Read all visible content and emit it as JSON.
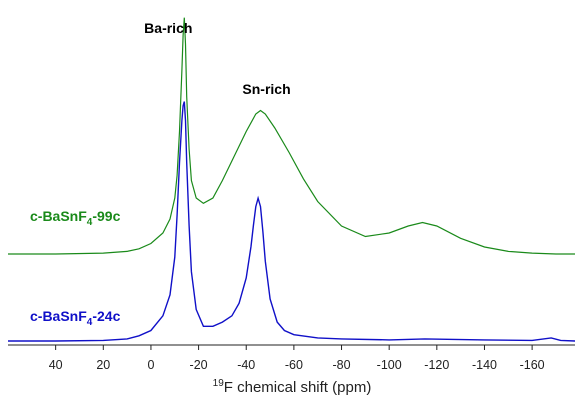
{
  "chart_data": {
    "type": "line",
    "xlabel_sup": "19",
    "xlabel": "F chemical shift (ppm)",
    "xlim": [
      60,
      -178
    ],
    "x_reversed": true,
    "x_ticks": [
      40,
      20,
      0,
      -20,
      -40,
      -60,
      -80,
      -100,
      -120,
      -140,
      -160
    ],
    "x_tick_labels": [
      "40",
      "20",
      "0",
      "-20",
      "-40",
      "-60",
      "-80",
      "-100",
      "-120",
      "-140",
      "-160"
    ],
    "ylabel": "",
    "y_axis_shown": false,
    "ylim": [
      -0.12,
      1.45
    ],
    "grid": false,
    "annotations": [
      {
        "text": "Ba-rich",
        "x": -14,
        "y": 1.43
      },
      {
        "text": "Sn-rich",
        "x": -46,
        "y": 1.02
      }
    ],
    "series": [
      {
        "label_main": "c-BaSnF",
        "label_sub": "4",
        "label_suffix": "-99c",
        "color": "#1a8a1a",
        "x": [
          60,
          40,
          20,
          10,
          5,
          0,
          -5,
          -8,
          -10,
          -11,
          -12,
          -13,
          -13.5,
          -14,
          -14.5,
          -15,
          -16,
          -17,
          -19,
          -22,
          -26,
          -30,
          -35,
          -40,
          -44,
          -46,
          -48,
          -52,
          -58,
          -64,
          -70,
          -80,
          -90,
          -100,
          -108,
          -114,
          -120,
          -130,
          -140,
          -150,
          -160,
          -170,
          -178
        ],
        "y": [
          0,
          0,
          0.005,
          0.015,
          0.03,
          0.06,
          0.12,
          0.2,
          0.32,
          0.45,
          0.7,
          1.05,
          1.25,
          1.35,
          1.2,
          0.9,
          0.6,
          0.42,
          0.32,
          0.29,
          0.32,
          0.42,
          0.56,
          0.7,
          0.8,
          0.82,
          0.8,
          0.72,
          0.58,
          0.43,
          0.3,
          0.16,
          0.1,
          0.12,
          0.16,
          0.18,
          0.16,
          0.09,
          0.04,
          0.015,
          0.005,
          0,
          0
        ]
      },
      {
        "label_main": "c-BaSnF",
        "label_sub": "4",
        "label_suffix": "-24c",
        "color": "#1010c8",
        "x": [
          60,
          40,
          20,
          10,
          5,
          0,
          -5,
          -8,
          -10,
          -11,
          -12,
          -13,
          -13.5,
          -14,
          -14.5,
          -15,
          -16,
          -17,
          -19,
          -22,
          -26,
          -30,
          -34,
          -37,
          -40,
          -42,
          -43,
          -44,
          -45,
          -46,
          -47,
          -48,
          -50,
          -53,
          -56,
          -60,
          -70,
          -80,
          -100,
          -115,
          -140,
          -160,
          -168,
          -172,
          -178
        ],
        "y": [
          0,
          0,
          0.003,
          0.01,
          0.025,
          0.05,
          0.12,
          0.22,
          0.4,
          0.6,
          0.85,
          1.05,
          1.12,
          1.14,
          1.05,
          0.85,
          0.55,
          0.33,
          0.15,
          0.07,
          0.07,
          0.09,
          0.12,
          0.18,
          0.3,
          0.45,
          0.55,
          0.64,
          0.68,
          0.64,
          0.52,
          0.38,
          0.2,
          0.09,
          0.05,
          0.03,
          0.015,
          0.01,
          0.005,
          0.01,
          0.005,
          0.003,
          0.015,
          0.003,
          0
        ]
      }
    ]
  }
}
